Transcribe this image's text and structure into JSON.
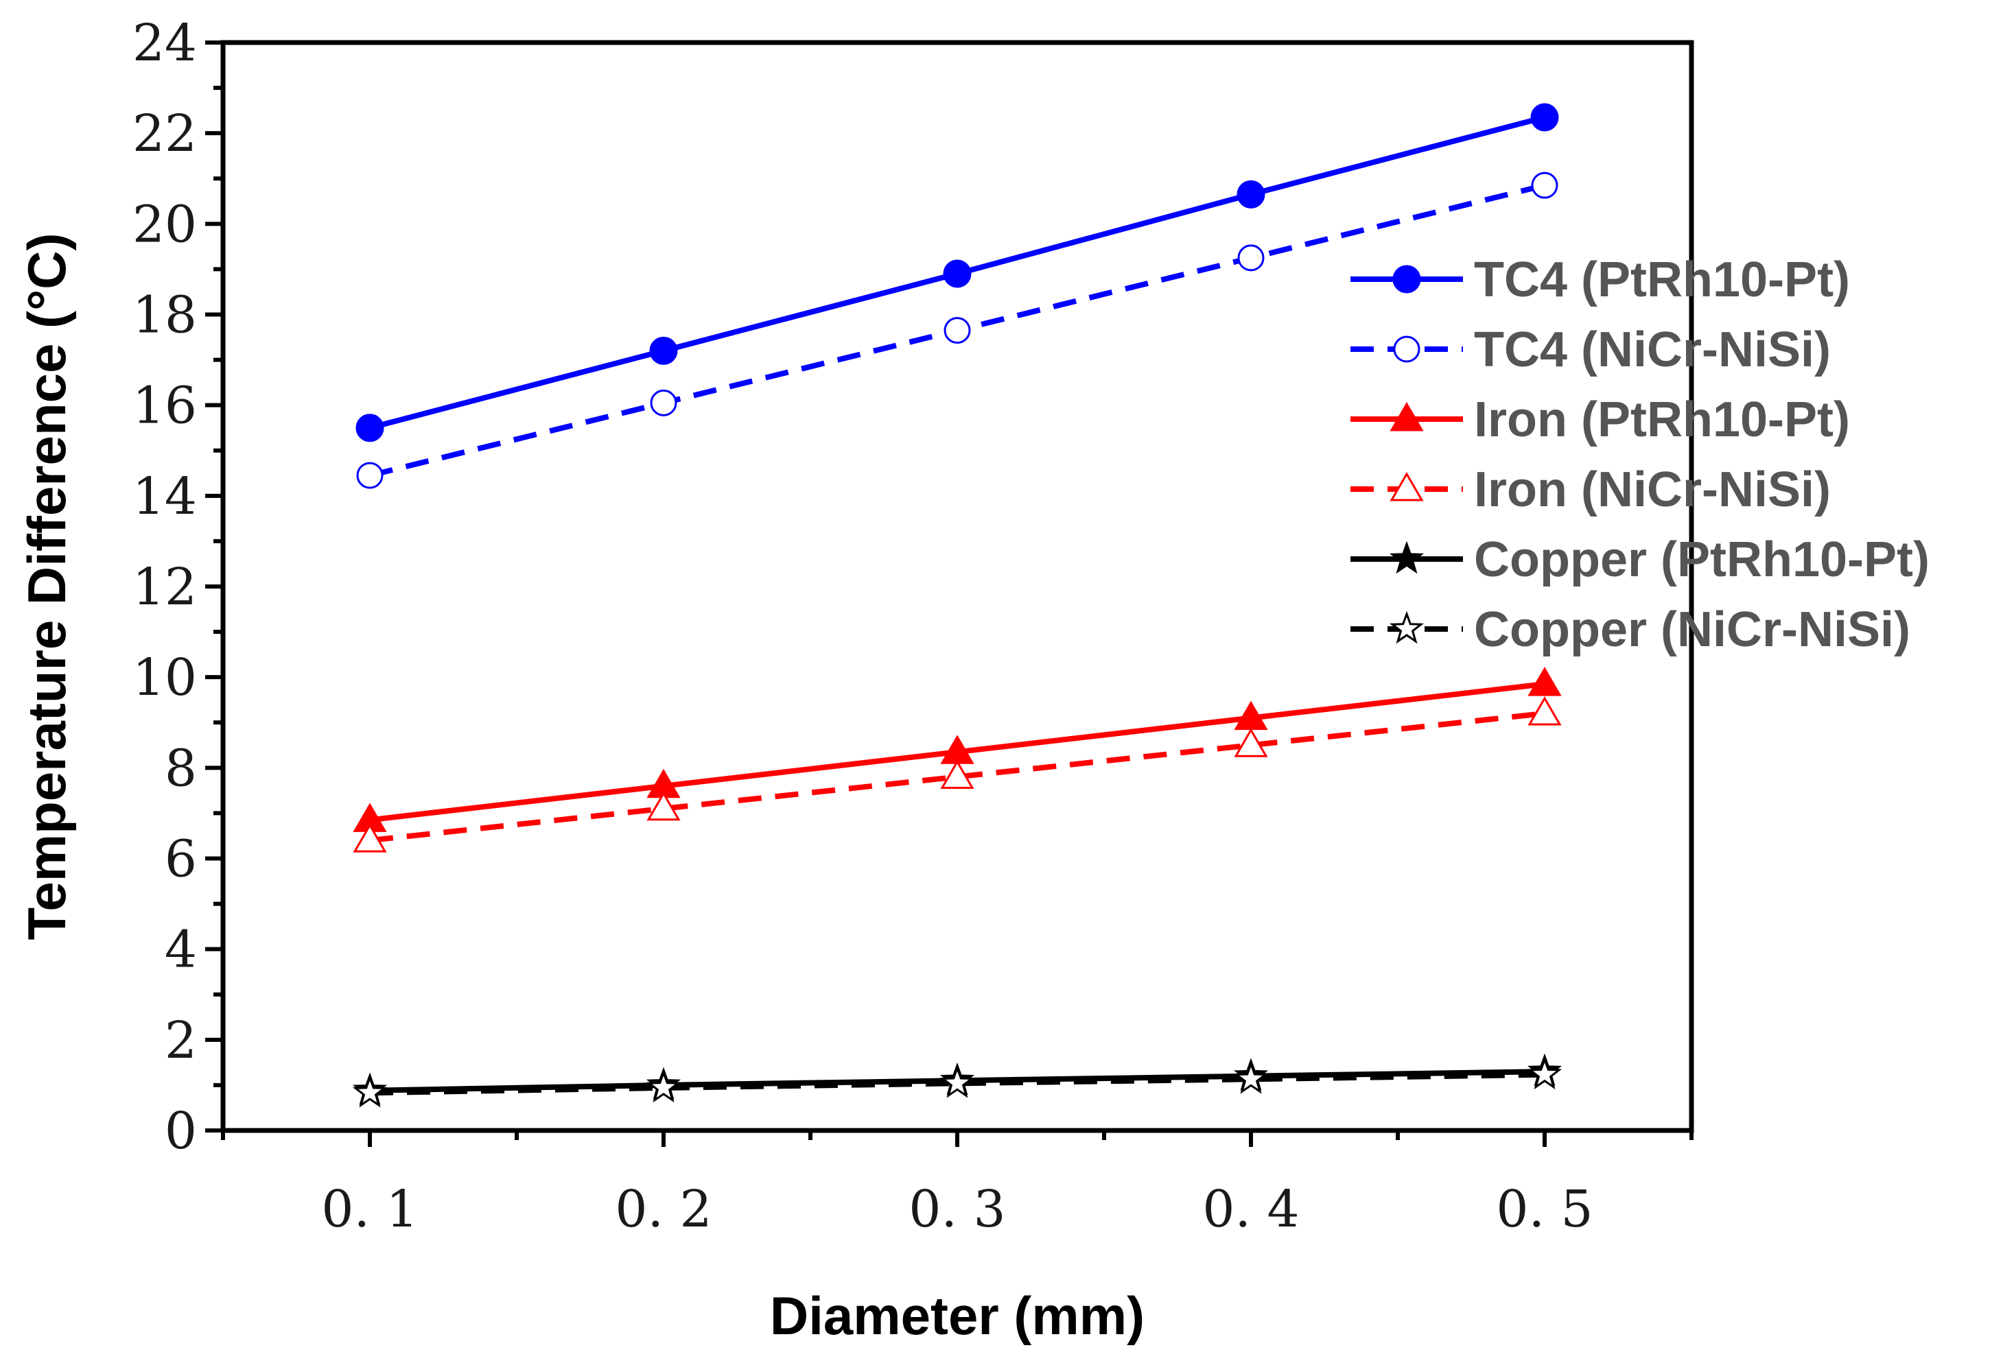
{
  "chart_data": {
    "type": "line",
    "title": "",
    "xlabel": "Diameter (mm)",
    "ylabel": "Temperature Difference (°C)",
    "xlim": [
      0.05,
      0.55
    ],
    "ylim": [
      0,
      24
    ],
    "x": [
      0.1,
      0.2,
      0.3,
      0.4,
      0.5
    ],
    "x_tick_labels": [
      "0. 1",
      "0. 2",
      "0. 3",
      "0. 4",
      "0. 5"
    ],
    "y_ticks": [
      0,
      2,
      4,
      6,
      8,
      10,
      12,
      14,
      16,
      18,
      20,
      22,
      24
    ],
    "y_tick_labels": [
      "0",
      "2",
      "4",
      "6",
      "8",
      "10",
      "12",
      "14",
      "16",
      "18",
      "20",
      "22",
      "24"
    ],
    "grid": false,
    "legend_position": "right",
    "series": [
      {
        "name": "TC4 (PtRh10-Pt)",
        "values": [
          15.5,
          17.2,
          18.9,
          20.65,
          22.35
        ],
        "color": "#0000ff",
        "dash": "solid",
        "marker": "circle",
        "filled": true
      },
      {
        "name": "TC4 (NiCr-NiSi)",
        "values": [
          14.45,
          16.05,
          17.65,
          19.25,
          20.85
        ],
        "color": "#0000ff",
        "dash": "dashed",
        "marker": "circle",
        "filled": false
      },
      {
        "name": "Iron (PtRh10-Pt)",
        "values": [
          6.85,
          7.6,
          8.35,
          9.1,
          9.85
        ],
        "color": "#ff0000",
        "dash": "solid",
        "marker": "triangle",
        "filled": true
      },
      {
        "name": "Iron (NiCr-NiSi)",
        "values": [
          6.4,
          7.1,
          7.8,
          8.5,
          9.2
        ],
        "color": "#ff0000",
        "dash": "dashed",
        "marker": "triangle",
        "filled": false
      },
      {
        "name": "Copper (PtRh10-Pt)",
        "values": [
          0.88,
          1.0,
          1.1,
          1.2,
          1.3
        ],
        "color": "#000000",
        "dash": "solid",
        "marker": "star",
        "filled": true
      },
      {
        "name": "Copper (NiCr-NiSi)",
        "values": [
          0.83,
          0.94,
          1.04,
          1.13,
          1.23
        ],
        "color": "#000000",
        "dash": "dashed",
        "marker": "star",
        "filled": false
      }
    ]
  }
}
